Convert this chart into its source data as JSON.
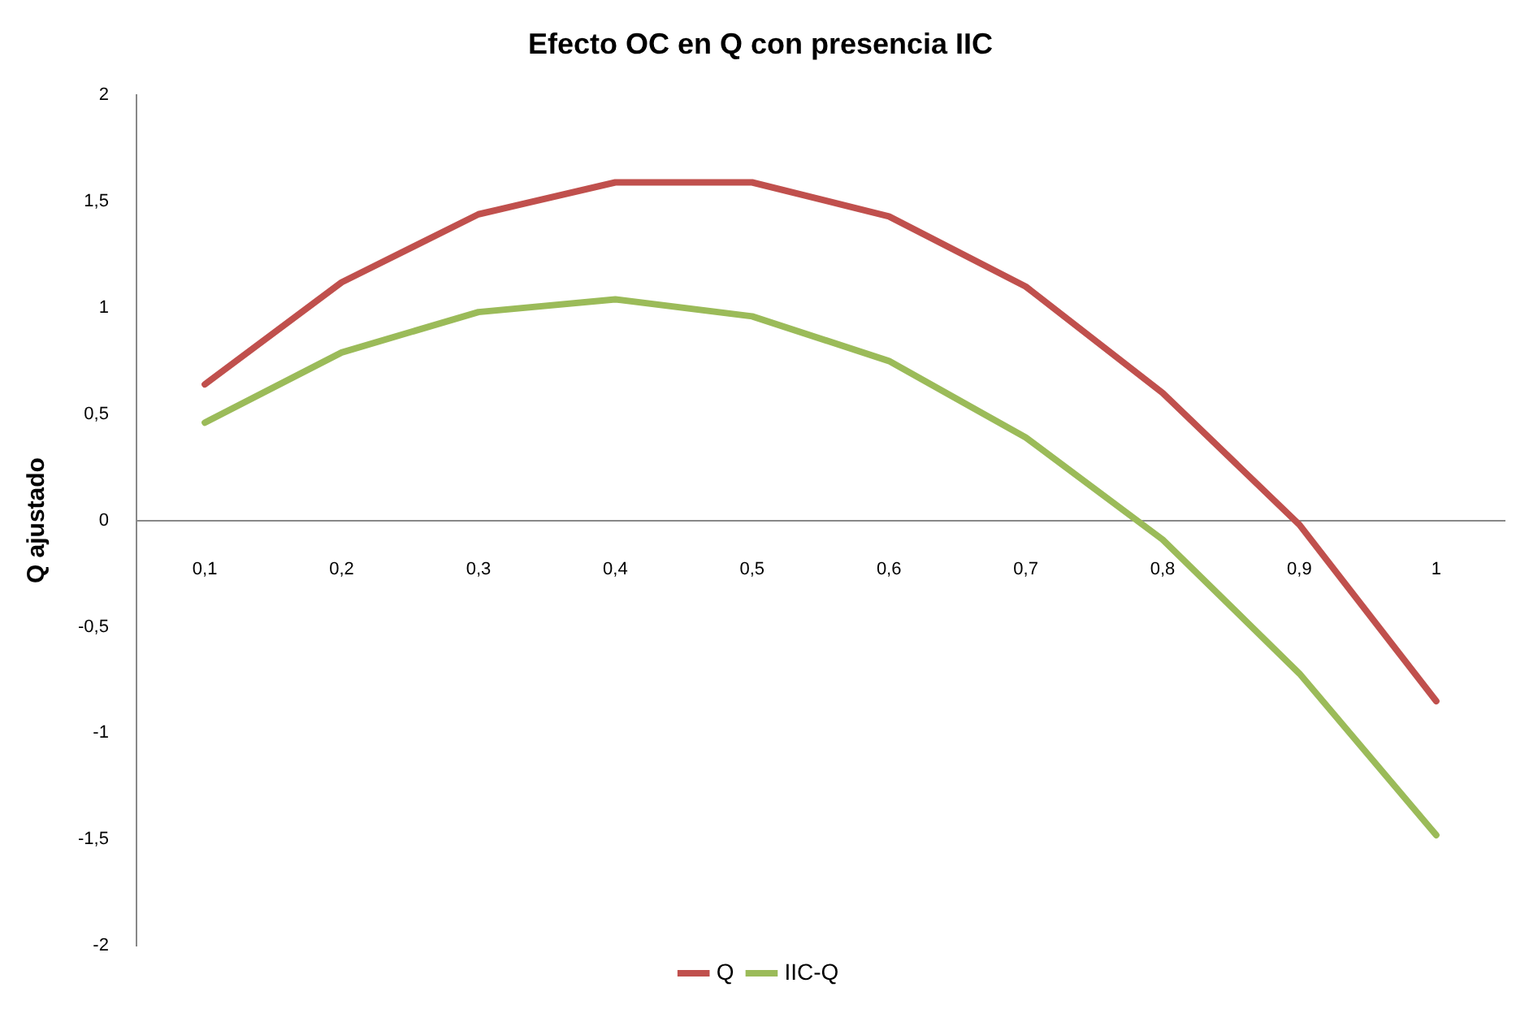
{
  "chart_data": {
    "type": "line",
    "title": "Efecto OC en Q con presencia IIC",
    "ylabel": "Q ajustado",
    "categories": [
      "0,1",
      "0,2",
      "0,3",
      "0,4",
      "0,5",
      "0,6",
      "0,7",
      "0,8",
      "0,9",
      "1"
    ],
    "series": [
      {
        "name": "Q",
        "color": "#c0504d",
        "values": [
          0.64,
          1.12,
          1.44,
          1.59,
          1.59,
          1.43,
          1.1,
          0.6,
          -0.02,
          -0.85
        ]
      },
      {
        "name": "IIC-Q",
        "color": "#9bbb59",
        "values": [
          0.46,
          0.79,
          0.98,
          1.04,
          0.96,
          0.75,
          0.39,
          -0.09,
          -0.72,
          -1.48
        ]
      }
    ],
    "ylim": [
      -2,
      2
    ],
    "yticks": [
      {
        "value": -2,
        "label": "-2"
      },
      {
        "value": -1.5,
        "label": "-1,5"
      },
      {
        "value": -1,
        "label": "-1"
      },
      {
        "value": -0.5,
        "label": "-0,5"
      },
      {
        "value": 0,
        "label": "0"
      },
      {
        "value": 0.5,
        "label": "0,5"
      },
      {
        "value": 1,
        "label": "1"
      },
      {
        "value": 1.5,
        "label": "1,5"
      },
      {
        "value": 2,
        "label": "2"
      }
    ],
    "grid": false,
    "legend": "bottom",
    "marker": "none",
    "line_style": "solid"
  }
}
